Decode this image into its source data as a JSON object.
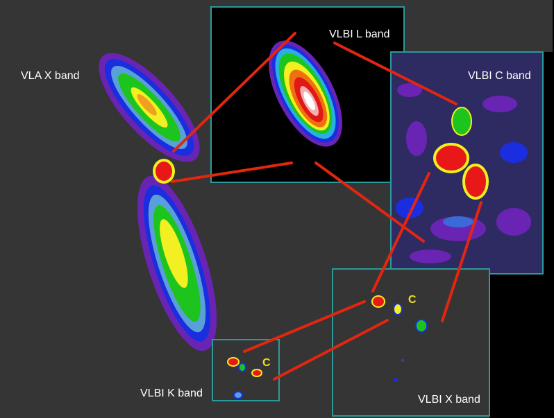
{
  "panels": [
    {
      "label": "VLA X band"
    },
    {
      "label": "VLBI L band"
    },
    {
      "label": "VLBI C band"
    },
    {
      "label": "VLBI K band"
    },
    {
      "label": "VLBI X band"
    }
  ],
  "component_labels": [
    "C",
    "C"
  ]
}
